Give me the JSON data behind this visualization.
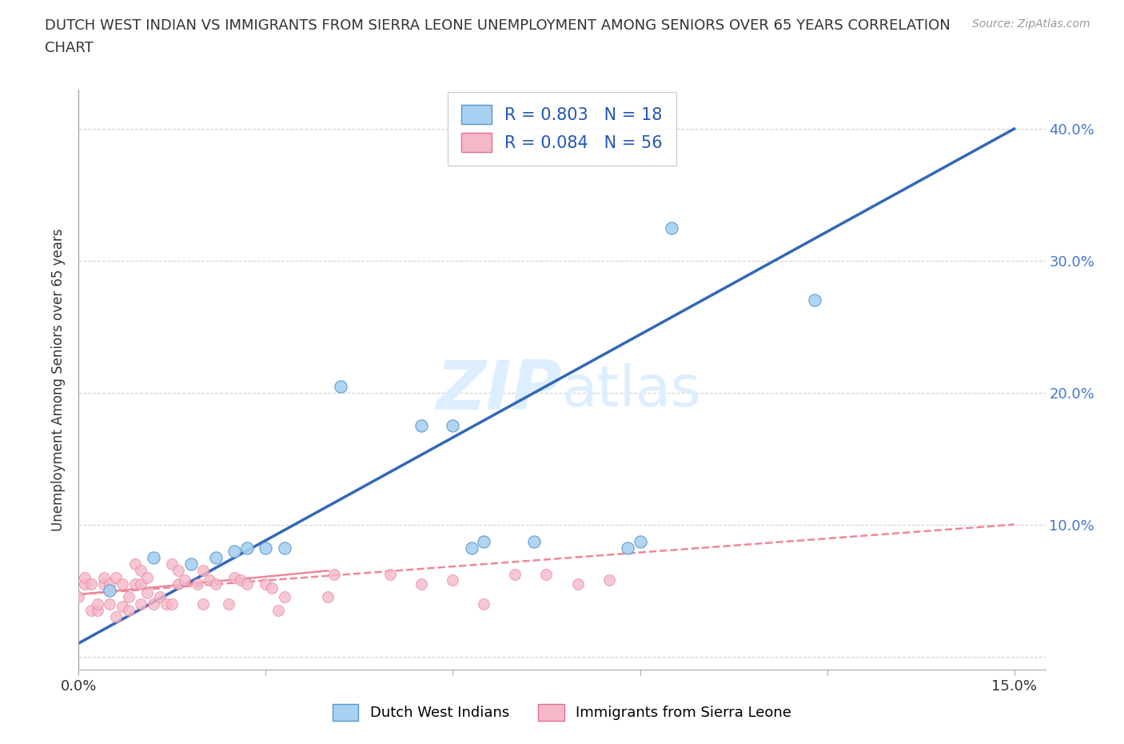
{
  "title_line1": "DUTCH WEST INDIAN VS IMMIGRANTS FROM SIERRA LEONE UNEMPLOYMENT AMONG SENIORS OVER 65 YEARS CORRELATION",
  "title_line2": "CHART",
  "source": "Source: ZipAtlas.com",
  "ylabel": "Unemployment Among Seniors over 65 years",
  "blue_label": "Dutch West Indians",
  "pink_label": "Immigrants from Sierra Leone",
  "legend_blue": "R = 0.803   N = 18",
  "legend_pink": "R = 0.084   N = 56",
  "blue_color": "#a8d0f0",
  "pink_color": "#f4b8c8",
  "blue_scatter_edge": "#5599cc",
  "pink_scatter_edge": "#e07090",
  "blue_line_color": "#3366bb",
  "pink_line_color": "#ee8899",
  "watermark_color": "#ddeeff",
  "xlim": [
    0.0,
    0.155
  ],
  "ylim": [
    -0.01,
    0.43
  ],
  "yticks": [
    0.0,
    0.1,
    0.2,
    0.3,
    0.4
  ],
  "right_ytick_labels": [
    "",
    "10.0%",
    "20.0%",
    "30.0%",
    "40.0%"
  ],
  "xticks": [
    0.0,
    0.03,
    0.06,
    0.09,
    0.12,
    0.15
  ],
  "xtick_labels": [
    "0.0%",
    "",
    "",
    "",
    "",
    "15.0%"
  ],
  "blue_x": [
    0.005,
    0.012,
    0.018,
    0.022,
    0.025,
    0.027,
    0.03,
    0.033,
    0.042,
    0.055,
    0.06,
    0.063,
    0.065,
    0.073,
    0.088,
    0.09,
    0.095,
    0.118
  ],
  "blue_y": [
    0.05,
    0.075,
    0.07,
    0.075,
    0.08,
    0.082,
    0.082,
    0.082,
    0.205,
    0.175,
    0.175,
    0.082,
    0.087,
    0.087,
    0.082,
    0.087,
    0.325,
    0.27
  ],
  "pink_x": [
    0.0,
    0.001,
    0.001,
    0.002,
    0.002,
    0.003,
    0.003,
    0.004,
    0.004,
    0.005,
    0.005,
    0.005,
    0.006,
    0.006,
    0.007,
    0.007,
    0.008,
    0.008,
    0.009,
    0.009,
    0.01,
    0.01,
    0.01,
    0.011,
    0.011,
    0.012,
    0.013,
    0.014,
    0.015,
    0.015,
    0.016,
    0.016,
    0.017,
    0.019,
    0.02,
    0.02,
    0.021,
    0.022,
    0.024,
    0.025,
    0.026,
    0.027,
    0.03,
    0.031,
    0.032,
    0.033,
    0.04,
    0.041,
    0.05,
    0.055,
    0.06,
    0.065,
    0.07,
    0.075,
    0.08,
    0.085
  ],
  "pink_y": [
    0.045,
    0.055,
    0.06,
    0.035,
    0.055,
    0.035,
    0.04,
    0.055,
    0.06,
    0.04,
    0.05,
    0.055,
    0.03,
    0.06,
    0.038,
    0.055,
    0.035,
    0.045,
    0.055,
    0.07,
    0.04,
    0.055,
    0.065,
    0.048,
    0.06,
    0.04,
    0.045,
    0.04,
    0.04,
    0.07,
    0.055,
    0.065,
    0.058,
    0.055,
    0.04,
    0.065,
    0.058,
    0.055,
    0.04,
    0.06,
    0.058,
    0.055,
    0.055,
    0.052,
    0.035,
    0.045,
    0.045,
    0.062,
    0.062,
    0.055,
    0.058,
    0.04,
    0.062,
    0.062,
    0.055,
    0.058
  ],
  "grid_color": "#cccccc",
  "background_color": "#ffffff",
  "blue_trend_x": [
    0.0,
    0.15
  ],
  "blue_trend_y": [
    0.01,
    0.4
  ],
  "pink_trend_x": [
    0.0,
    0.15
  ],
  "pink_trend_y": [
    0.047,
    0.1
  ]
}
